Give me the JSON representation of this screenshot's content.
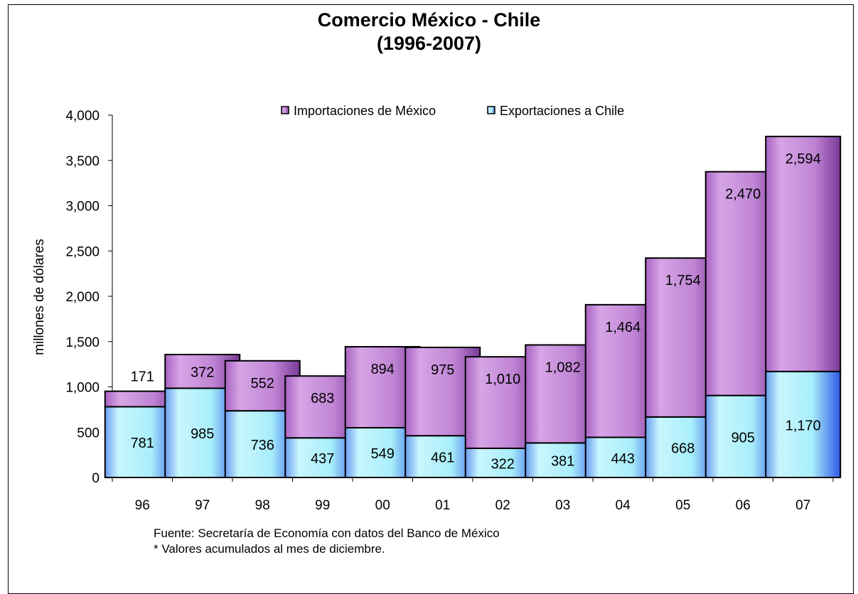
{
  "chart_data": {
    "type": "bar",
    "stacked": true,
    "title": "Comercio México - Chile",
    "subtitle": "(1996-2007)",
    "ylabel": "millones de dólares",
    "ylim": [
      0,
      4000
    ],
    "yticks": [
      0,
      500,
      1000,
      1500,
      2000,
      2500,
      3000,
      3500,
      4000
    ],
    "ytick_labels": [
      "0",
      "500",
      "1,000",
      "1,500",
      "2,000",
      "2,500",
      "3,000",
      "3,500",
      "4,000"
    ],
    "categories": [
      "96",
      "97",
      "98",
      "99",
      "00",
      "01",
      "02",
      "03",
      "04",
      "05",
      "06",
      "07"
    ],
    "series": [
      {
        "name": "Exportaciones a Chile",
        "color": "#a9f0fb",
        "values": [
          781,
          985,
          736,
          437,
          549,
          461,
          322,
          381,
          443,
          668,
          905,
          1170
        ],
        "labels": [
          "781",
          "985",
          "736",
          "437",
          "549",
          "461",
          "322",
          "381",
          "443",
          "668",
          "905",
          "1,170"
        ]
      },
      {
        "name": "Importaciones de México",
        "color": "#b97ad0",
        "values": [
          171,
          372,
          552,
          683,
          894,
          975,
          1010,
          1082,
          1464,
          1754,
          2470,
          2594
        ],
        "labels": [
          "171",
          "372",
          "552",
          "683",
          "894",
          "975",
          "1,010",
          "1,082",
          "1,464",
          "1,754",
          "2,470",
          "2,594"
        ]
      }
    ],
    "legend": {
      "position": "top",
      "order": [
        "Importaciones de México",
        "Exportaciones a Chile"
      ]
    },
    "grid": false
  },
  "notes": {
    "source": "Fuente: Secretaría de Economía con datos del Banco de México",
    "footnote": "* Valores acumulados al mes de diciembre."
  }
}
